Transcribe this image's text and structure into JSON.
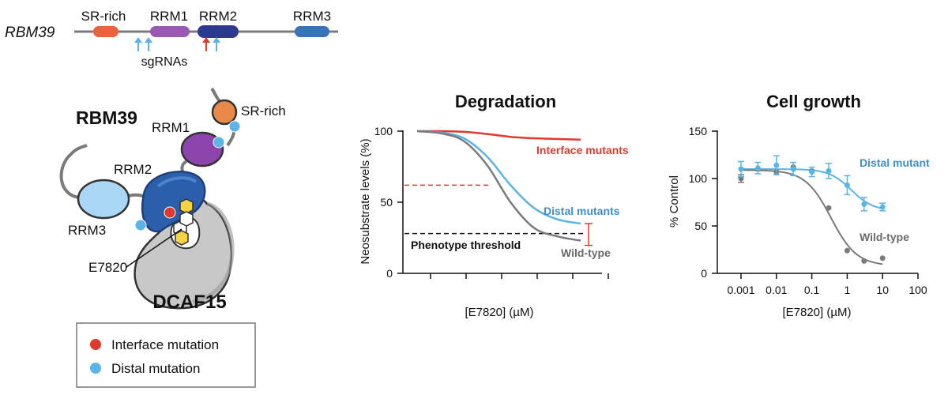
{
  "domain_track": {
    "gene_label": "RBM39",
    "domains": [
      "SR-rich",
      "RRM1",
      "RRM2",
      "RRM3"
    ],
    "sgRNA_label": "sgRNAs"
  },
  "structure": {
    "protein_label": "RBM39",
    "labels": {
      "sr_rich": "SR-rich",
      "rrm1": "RRM1",
      "rrm2": "RRM2",
      "rrm3": "RRM3",
      "drug": "E7820",
      "dcaf15": "DCAF15"
    }
  },
  "legend": {
    "items": [
      {
        "label": "Interface mutation",
        "color": "#e03a2f"
      },
      {
        "label": "Distal mutation",
        "color": "#5ab4e6"
      }
    ]
  },
  "chart_data": [
    {
      "type": "line",
      "title": "Degradation",
      "xlabel": "[E7820] (µM)",
      "ylabel": "Neosubstrate levels (%)",
      "yticks": [
        "0",
        "50",
        "100"
      ],
      "ylim": [
        0,
        100
      ],
      "threshold_label": "Phenotype threshold",
      "threshold_value": 28,
      "series": [
        {
          "name": "Interface mutants",
          "color": "#e03a2f",
          "values": [
            100,
            100,
            99.5,
            98,
            96,
            95,
            94.5,
            94
          ]
        },
        {
          "name": "Distal mutants",
          "color": "#5ab4e6",
          "values": [
            100,
            99,
            95,
            82,
            62,
            46,
            38,
            35
          ]
        },
        {
          "name": "Wild-type",
          "color": "#7a7a7a",
          "values": [
            100,
            98.5,
            93,
            76,
            50,
            32,
            26,
            23
          ]
        }
      ]
    },
    {
      "type": "scatter",
      "title": "Cell growth",
      "xlabel": "[E7820] (µM)",
      "ylabel": "% Control",
      "x_scale": "log",
      "xticks": [
        "0.001",
        "0.01",
        "0.1",
        "1",
        "10",
        "100"
      ],
      "yticks": [
        "0",
        "50",
        "100",
        "150"
      ],
      "ylim": [
        0,
        150
      ],
      "series": [
        {
          "name": "Distal mutant",
          "color": "#5ab4e6",
          "x": [
            0.001,
            0.003,
            0.01,
            0.03,
            0.1,
            0.3,
            1,
            3,
            10
          ],
          "y": [
            110,
            111,
            114,
            110,
            107,
            108,
            93,
            73,
            70
          ],
          "err": [
            8,
            6,
            10,
            7,
            5,
            8,
            10,
            7,
            4
          ]
        },
        {
          "name": "Wild-type",
          "color": "#7a7a7a",
          "x": [
            0.001,
            0.003,
            0.01,
            0.03,
            0.1,
            0.3,
            1,
            3,
            10
          ],
          "y": [
            100,
            110,
            107,
            112,
            108,
            69,
            24,
            13,
            16
          ],
          "err": [
            4,
            0,
            0,
            0,
            0,
            0,
            0,
            0,
            0
          ]
        }
      ]
    }
  ]
}
